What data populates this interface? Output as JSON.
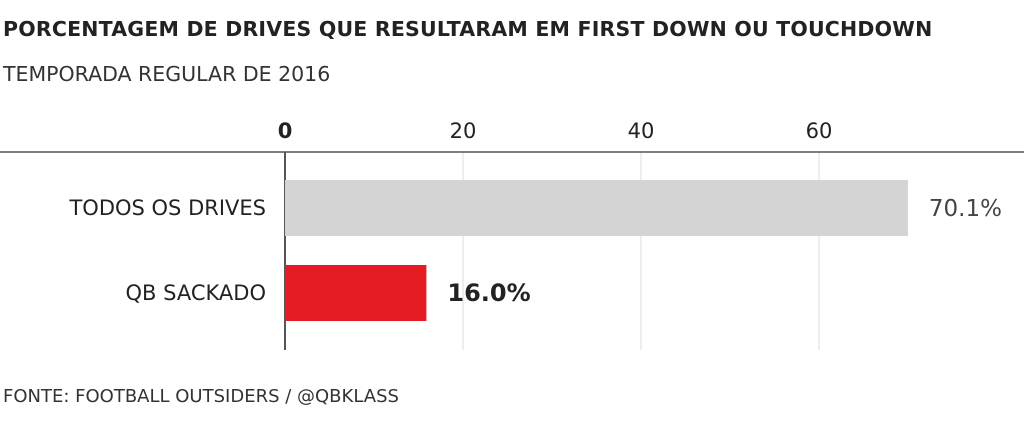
{
  "chart_data": {
    "type": "bar",
    "orientation": "horizontal",
    "title": "PORCENTAGEM DE DRIVES QUE RESULTARAM EM FIRST DOWN OU TOUCHDOWN",
    "subtitle": "TEMPORADA REGULAR DE 2016",
    "source": "FONTE: FOOTBALL OUTSIDERS / @QBKLASS",
    "xlim": [
      0,
      80
    ],
    "xticks": [
      0,
      20,
      40,
      60
    ],
    "xtick_labels": [
      "0",
      "20",
      "40",
      "60"
    ],
    "grid": true,
    "categories": [
      "TODOS OS DRIVES",
      "QB SACKADO"
    ],
    "values": [
      70.1,
      16.0
    ],
    "value_labels": [
      "70.1%",
      "16.0%"
    ],
    "colors": [
      "#d4d4d4",
      "#e51c23"
    ],
    "value_label_bold": [
      false,
      true
    ]
  },
  "colors": {
    "axis": "#555555",
    "grid": "#dddddd",
    "text": "#222222"
  }
}
